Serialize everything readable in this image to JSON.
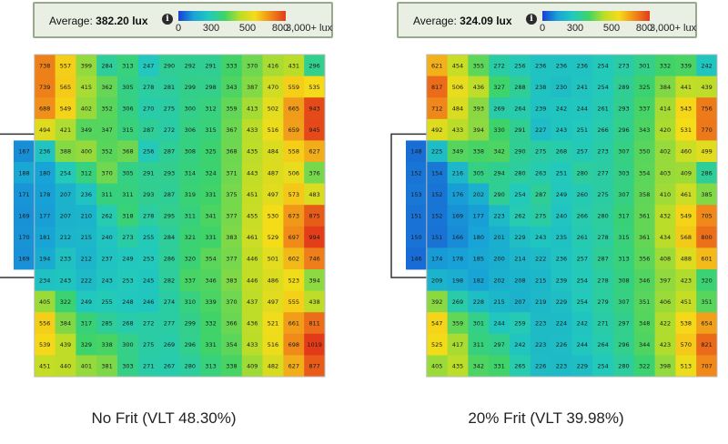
{
  "legend": {
    "ticks": [
      "0",
      "300",
      "500",
      "800",
      "3,000+ lux"
    ],
    "color_stops": [
      "#1a3fd4",
      "#18a4d6",
      "#22c9bd",
      "#3ed36a",
      "#b9dd2a",
      "#f5dc19",
      "#f08a1a",
      "#e33b19"
    ]
  },
  "panels": [
    {
      "average_label": "Average:",
      "average_value": "382.20 lux",
      "caption": "No Frit (VLT 48.30%)",
      "chart_data": {
        "type": "heatmap",
        "rows": [
          [
            null,
            738,
            557,
            399,
            284,
            313,
            247,
            290,
            292,
            291,
            333,
            370,
            416,
            431,
            296
          ],
          [
            null,
            739,
            565,
            415,
            362,
            305,
            278,
            281,
            299,
            298,
            343,
            387,
            470,
            559,
            535
          ],
          [
            null,
            688,
            549,
            402,
            352,
            306,
            270,
            275,
            300,
            312,
            359,
            413,
            502,
            665,
            943
          ],
          [
            null,
            494,
            421,
            349,
            347,
            315,
            287,
            272,
            306,
            315,
            367,
            433,
            516,
            659,
            945
          ],
          [
            167,
            236,
            388,
            400,
            352,
            368,
            256,
            287,
            308,
            325,
            368,
            435,
            484,
            558,
            627
          ],
          [
            188,
            180,
            254,
            312,
            370,
            305,
            291,
            293,
            314,
            324,
            371,
            443,
            487,
            506,
            376
          ],
          [
            171,
            178,
            207,
            236,
            311,
            311,
            293,
            287,
            319,
            331,
            375,
            451,
            497,
            573,
            483
          ],
          [
            169,
            177,
            207,
            210,
            262,
            318,
            278,
            295,
            311,
            341,
            377,
            455,
            530,
            673,
            875
          ],
          [
            170,
            181,
            212,
            215,
            240,
            273,
            255,
            284,
            321,
            331,
            383,
            461,
            529,
            697,
            994
          ],
          [
            169,
            194,
            233,
            212,
            237,
            249,
            253,
            286,
            320,
            354,
            377,
            446,
            501,
            602,
            746
          ],
          [
            null,
            234,
            243,
            222,
            243,
            253,
            245,
            282,
            337,
            346,
            383,
            446,
            486,
            523,
            394
          ],
          [
            null,
            405,
            322,
            249,
            255,
            248,
            246,
            274,
            310,
            339,
            370,
            437,
            497,
            555,
            438
          ],
          [
            null,
            556,
            384,
            317,
            285,
            268,
            272,
            277,
            299,
            332,
            366,
            436,
            521,
            661,
            811
          ],
          [
            null,
            539,
            439,
            329,
            338,
            300,
            275,
            269,
            296,
            331,
            354,
            433,
            516,
            698,
            1019
          ],
          [
            null,
            451,
            440,
            401,
            381,
            303,
            271,
            267,
            280,
            313,
            338,
            409,
            482,
            627,
            877
          ]
        ]
      }
    },
    {
      "average_label": "Average:",
      "average_value": "324.09 lux",
      "caption": "20% Frit (VLT 39.98%)",
      "chart_data": {
        "type": "heatmap",
        "rows": [
          [
            null,
            621,
            454,
            355,
            272,
            256,
            236,
            236,
            236,
            254,
            273,
            301,
            332,
            339,
            242
          ],
          [
            null,
            817,
            506,
            436,
            327,
            288,
            238,
            230,
            241,
            254,
            289,
            325,
            384,
            441,
            439
          ],
          [
            null,
            712,
            484,
            393,
            269,
            264,
            239,
            242,
            244,
            261,
            293,
            337,
            414,
            543,
            756
          ],
          [
            null,
            492,
            433,
            394,
            330,
            291,
            227,
            243,
            251,
            266,
            296,
            343,
            420,
            531,
            770
          ],
          [
            148,
            225,
            349,
            338,
            342,
            290,
            275,
            268,
            257,
            273,
            307,
            350,
            402,
            460,
            499
          ],
          [
            152,
            154,
            216,
            305,
            294,
            280,
            263,
            251,
            280,
            277,
            303,
            354,
            403,
            409,
            286
          ],
          [
            153,
            152,
            176,
            202,
            290,
            254,
            287,
            249,
            260,
            275,
            307,
            358,
            410,
            461,
            385
          ],
          [
            151,
            152,
            169,
            177,
            223,
            262,
            275,
            240,
            266,
            280,
            317,
            361,
            432,
            549,
            705
          ],
          [
            150,
            151,
            166,
            180,
            201,
            229,
            243,
            235,
            261,
            278,
            315,
            361,
            434,
            568,
            800
          ],
          [
            146,
            174,
            178,
            185,
            200,
            214,
            222,
            236,
            257,
            287,
            313,
            356,
            408,
            488,
            601
          ],
          [
            null,
            209,
            198,
            182,
            202,
            208,
            215,
            239,
            254,
            278,
            308,
            346,
            397,
            423,
            320
          ],
          [
            null,
            392,
            269,
            228,
            215,
            207,
            219,
            229,
            254,
            279,
            307,
            351,
            406,
            451,
            351
          ],
          [
            null,
            547,
            359,
            301,
            244,
            259,
            223,
            224,
            242,
            271,
            297,
            348,
            422,
            538,
            654
          ],
          [
            null,
            525,
            417,
            311,
            297,
            242,
            223,
            226,
            244,
            264,
            296,
            344,
            423,
            570,
            821
          ],
          [
            null,
            405,
            435,
            342,
            331,
            265,
            226,
            223,
            229,
            254,
            280,
            322,
            398,
            513,
            707
          ]
        ]
      }
    }
  ]
}
